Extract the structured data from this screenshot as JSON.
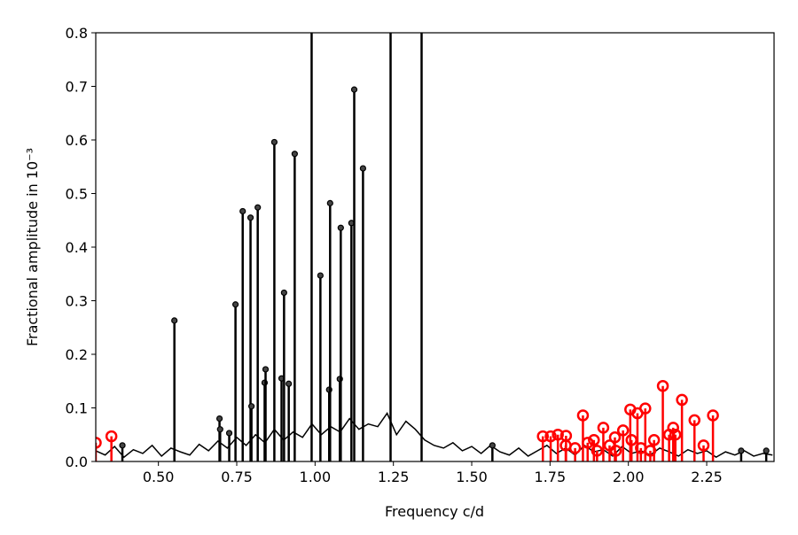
{
  "chart_data": {
    "type": "stem",
    "xlabel": "Frequency c/d",
    "ylabel": "Fractional amplitude in 10⁻³",
    "xlim": [
      0.3,
      2.465
    ],
    "ylim": [
      0,
      0.8
    ],
    "xticks": [
      {
        "value": 0.5,
        "label": "0.50"
      },
      0.75,
      {
        "value": 1,
        "label": "1.00"
      },
      1.25,
      {
        "value": 1.5,
        "label": "1.50"
      },
      1.75,
      {
        "value": 2,
        "label": "2.00"
      },
      2.25
    ],
    "yticks": [
      {
        "value": 0,
        "label": "0.0"
      },
      0.1,
      0.2,
      0.3,
      0.4,
      0.5,
      0.6,
      0.7,
      0.8
    ],
    "grid": false,
    "series": [
      {
        "style": "line",
        "color": "#000000",
        "x": [
          0.3,
          0.33,
          0.36,
          0.39,
          0.42,
          0.45,
          0.48,
          0.51,
          0.54,
          0.57,
          0.6,
          0.63,
          0.66,
          0.69,
          0.72,
          0.75,
          0.78,
          0.81,
          0.84,
          0.87,
          0.9,
          0.93,
          0.96,
          0.99,
          1.02,
          1.05,
          1.08,
          1.11,
          1.14,
          1.17,
          1.2,
          1.23,
          1.26,
          1.29,
          1.32,
          1.35,
          1.38,
          1.41,
          1.44,
          1.47,
          1.5,
          1.53,
          1.56,
          1.59,
          1.62,
          1.65,
          1.68,
          1.71,
          1.74,
          1.77,
          1.8,
          1.83,
          1.86,
          1.89,
          1.92,
          1.95,
          1.98,
          2.01,
          2.04,
          2.07,
          2.1,
          2.13,
          2.16,
          2.19,
          2.22,
          2.25,
          2.28,
          2.31,
          2.34,
          2.37,
          2.4,
          2.43,
          2.46
        ],
        "values": [
          0.02,
          0.012,
          0.028,
          0.008,
          0.022,
          0.015,
          0.03,
          0.01,
          0.025,
          0.018,
          0.012,
          0.032,
          0.02,
          0.038,
          0.025,
          0.045,
          0.03,
          0.05,
          0.035,
          0.06,
          0.04,
          0.055,
          0.045,
          0.07,
          0.05,
          0.065,
          0.055,
          0.08,
          0.06,
          0.07,
          0.065,
          0.09,
          0.05,
          0.075,
          0.06,
          0.04,
          0.03,
          0.025,
          0.035,
          0.02,
          0.028,
          0.015,
          0.03,
          0.018,
          0.012,
          0.025,
          0.01,
          0.02,
          0.03,
          0.015,
          0.025,
          0.012,
          0.03,
          0.018,
          0.022,
          0.01,
          0.028,
          0.015,
          0.02,
          0.012,
          0.025,
          0.018,
          0.01,
          0.022,
          0.015,
          0.02,
          0.008,
          0.018,
          0.012,
          0.02,
          0.01,
          0.015,
          0.012
        ]
      },
      {
        "style": "stem",
        "color": "#000000",
        "x": [
          0.551,
          0.695,
          0.697,
          0.726,
          0.746,
          0.769,
          0.794,
          0.797,
          0.817,
          0.839,
          0.842,
          0.87,
          0.893,
          0.901,
          0.916,
          0.935,
          0.989,
          1.017,
          1.045,
          1.048,
          1.079,
          1.082,
          1.116,
          1.125,
          1.153,
          1.241,
          1.34,
          0.385,
          1.566,
          2.36,
          2.44
        ],
        "values": [
          0.263,
          0.08,
          0.06,
          0.053,
          0.293,
          0.467,
          0.455,
          0.103,
          0.474,
          0.147,
          0.172,
          0.596,
          0.155,
          0.315,
          0.145,
          0.574,
          1.2,
          0.347,
          0.134,
          0.482,
          0.154,
          0.436,
          0.445,
          0.694,
          0.547,
          1.2,
          1.2,
          0.03,
          0.03,
          0.02,
          0.02
        ]
      },
      {
        "style": "stem-open",
        "color": "#ff0000",
        "x": [
          0.3,
          0.35,
          1.727,
          1.752,
          1.775,
          1.801,
          1.855,
          1.8,
          1.83,
          1.87,
          1.9,
          1.92,
          1.89,
          1.94,
          1.957,
          1.96,
          1.983,
          2.006,
          2.029,
          2.01,
          2.04,
          2.054,
          2.07,
          2.082,
          2.11,
          2.13,
          2.143,
          2.15,
          2.171,
          2.211,
          2.24,
          2.27
        ],
        "values": [
          0.035,
          0.047,
          0.047,
          0.047,
          0.05,
          0.048,
          0.086,
          0.03,
          0.025,
          0.035,
          0.02,
          0.063,
          0.04,
          0.03,
          0.045,
          0.02,
          0.058,
          0.097,
          0.09,
          0.04,
          0.025,
          0.099,
          0.02,
          0.04,
          0.141,
          0.05,
          0.063,
          0.05,
          0.115,
          0.077,
          0.03,
          0.086
        ]
      }
    ]
  }
}
